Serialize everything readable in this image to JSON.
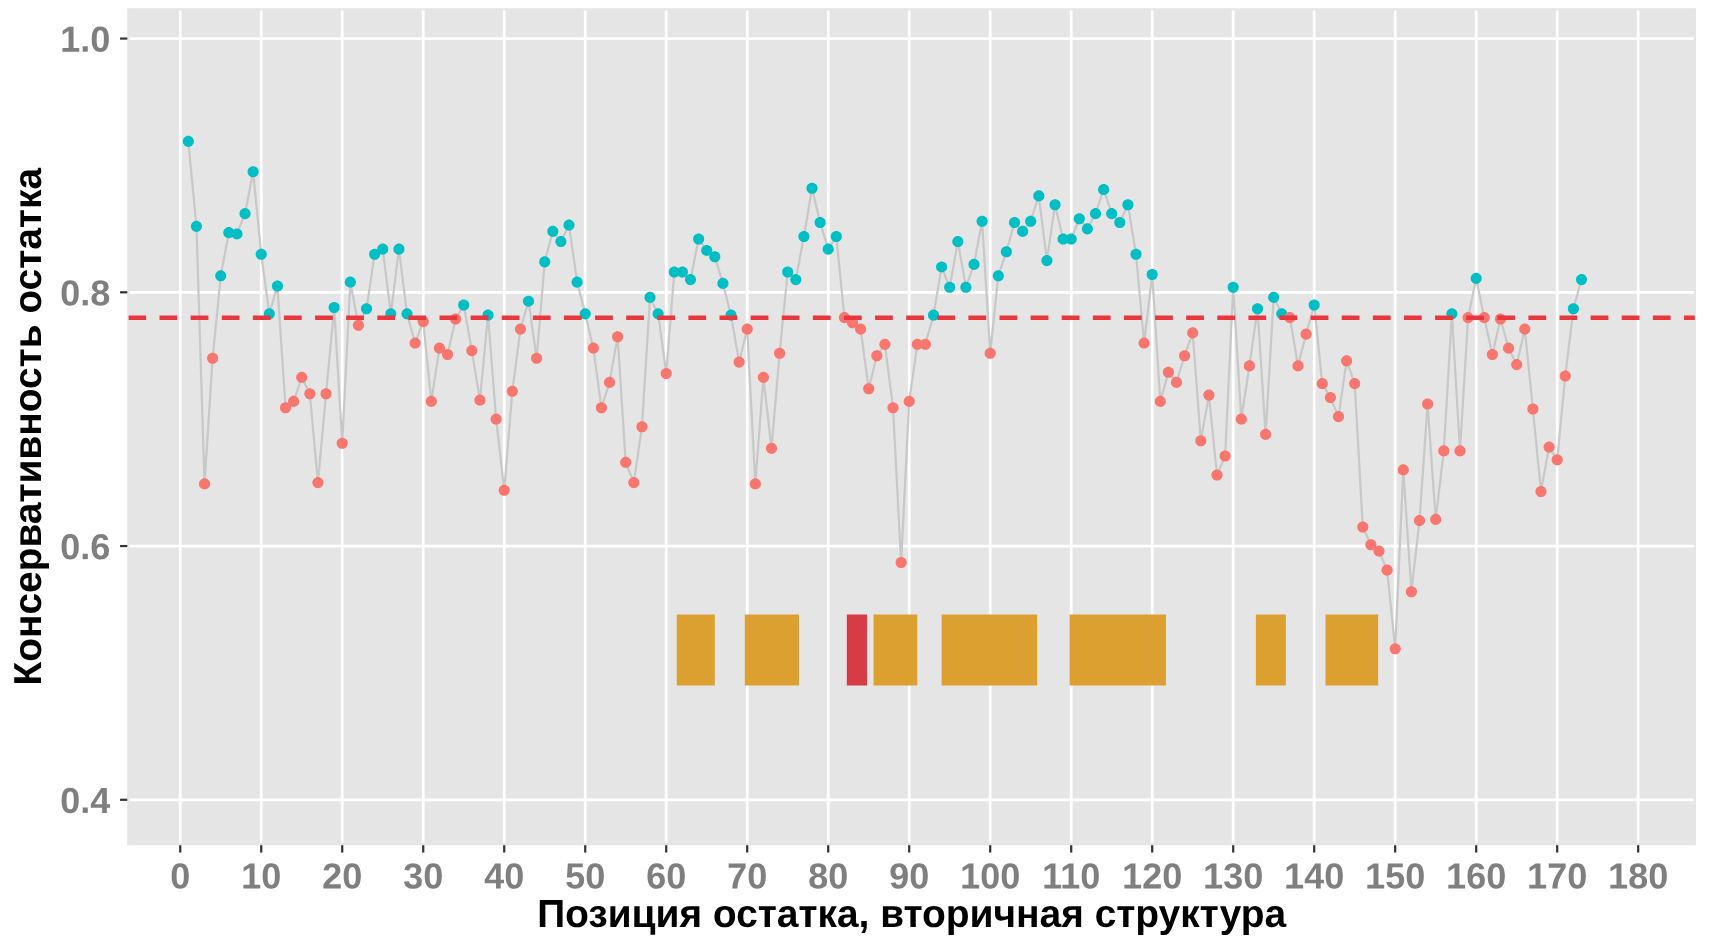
{
  "chart_data": {
    "type": "scatter",
    "xlabel": "Позиция остатка, вторичная структура",
    "ylabel": "Консервативность остатка",
    "x": [
      1,
      2,
      3,
      4,
      5,
      6,
      7,
      8,
      9,
      10,
      11,
      12,
      13,
      14,
      15,
      16,
      17,
      18,
      19,
      20,
      21,
      22,
      23,
      24,
      25,
      26,
      27,
      28,
      29,
      30,
      31,
      32,
      33,
      34,
      35,
      36,
      37,
      38,
      39,
      40,
      41,
      42,
      43,
      44,
      45,
      46,
      47,
      48,
      49,
      50,
      51,
      52,
      53,
      54,
      55,
      56,
      57,
      58,
      59,
      60,
      61,
      62,
      63,
      64,
      65,
      66,
      67,
      68,
      69,
      70,
      71,
      72,
      73,
      74,
      75,
      76,
      77,
      78,
      79,
      80,
      81,
      82,
      83,
      84,
      85,
      86,
      87,
      88,
      89,
      90,
      91,
      92,
      93,
      94,
      95,
      96,
      97,
      98,
      99,
      100,
      101,
      102,
      103,
      104,
      105,
      106,
      107,
      108,
      109,
      110,
      111,
      112,
      113,
      114,
      115,
      116,
      117,
      118,
      119,
      120,
      121,
      122,
      123,
      124,
      125,
      126,
      127,
      128,
      129,
      130,
      131,
      132,
      133,
      134,
      135,
      136,
      137,
      138,
      139,
      140,
      141,
      142,
      143,
      144,
      145,
      146,
      147,
      148,
      149,
      150,
      151,
      152,
      153,
      154,
      155,
      156,
      157,
      158,
      159,
      160,
      161,
      162,
      163,
      164,
      165,
      166,
      167,
      168,
      169,
      170,
      171,
      172,
      173
    ],
    "series": [
      {
        "type": "line",
        "color": "#c8c8c8",
        "marker": "none",
        "values": [
          0.919,
          0.852,
          0.649,
          0.748,
          0.813,
          0.847,
          0.846,
          0.862,
          0.895,
          0.83,
          0.783,
          0.805,
          0.709,
          0.714,
          0.733,
          0.72,
          0.65,
          0.72,
          0.788,
          0.681,
          0.808,
          0.774,
          0.787,
          0.83,
          0.834,
          0.783,
          0.834,
          0.783,
          0.76,
          0.777,
          0.714,
          0.756,
          0.751,
          0.779,
          0.79,
          0.754,
          0.715,
          0.782,
          0.7,
          0.644,
          0.722,
          0.771,
          0.793,
          0.748,
          0.824,
          0.848,
          0.84,
          0.853,
          0.808,
          0.783,
          0.756,
          0.709,
          0.729,
          0.765,
          0.666,
          0.65,
          0.694,
          0.796,
          0.783,
          0.736,
          0.816,
          0.816,
          0.81,
          0.842,
          0.833,
          0.828,
          0.807,
          0.782,
          0.745,
          0.771,
          0.649,
          0.733,
          0.677,
          0.752,
          0.816,
          0.81,
          0.844,
          0.882,
          0.855,
          0.834,
          0.844,
          0.78,
          0.776,
          0.771,
          0.724,
          0.75,
          0.759,
          0.709,
          0.587,
          0.714,
          0.759,
          0.759,
          0.782,
          0.82,
          0.804,
          0.84,
          0.804,
          0.822,
          0.856,
          0.752,
          0.813,
          0.832,
          0.855,
          0.848,
          0.856,
          0.876,
          0.825,
          0.869,
          0.842,
          0.842,
          0.858,
          0.85,
          0.862,
          0.881,
          0.862,
          0.855,
          0.869,
          0.83,
          0.76,
          0.814,
          0.714,
          0.737,
          0.729,
          0.75,
          0.768,
          0.683,
          0.719,
          0.656,
          0.671,
          0.804,
          0.7,
          0.742,
          0.787,
          0.688,
          0.796,
          0.783,
          0.78,
          0.742,
          0.767,
          0.79,
          0.728,
          0.717,
          0.702,
          0.746,
          0.728,
          0.615,
          0.601,
          0.596,
          0.581,
          0.519,
          0.66,
          0.564,
          0.62,
          0.712,
          0.621,
          0.675,
          0.783,
          0.675,
          0.78,
          0.811,
          0.78,
          0.751,
          0.779,
          0.756,
          0.743,
          0.771,
          0.708,
          0.643,
          0.678,
          0.668,
          0.734,
          0.787,
          0.81
        ]
      },
      {
        "marker": "circle",
        "values": [
          0.919,
          0.852,
          0.649,
          0.748,
          0.813,
          0.847,
          0.846,
          0.862,
          0.895,
          0.83,
          0.783,
          0.805,
          0.709,
          0.714,
          0.733,
          0.72,
          0.65,
          0.72,
          0.788,
          0.681,
          0.808,
          0.774,
          0.787,
          0.83,
          0.834,
          0.783,
          0.834,
          0.783,
          0.76,
          0.777,
          0.714,
          0.756,
          0.751,
          0.779,
          0.79,
          0.754,
          0.715,
          0.782,
          0.7,
          0.644,
          0.722,
          0.771,
          0.793,
          0.748,
          0.824,
          0.848,
          0.84,
          0.853,
          0.808,
          0.783,
          0.756,
          0.709,
          0.729,
          0.765,
          0.666,
          0.65,
          0.694,
          0.796,
          0.783,
          0.736,
          0.816,
          0.816,
          0.81,
          0.842,
          0.833,
          0.828,
          0.807,
          0.782,
          0.745,
          0.771,
          0.649,
          0.733,
          0.677,
          0.752,
          0.816,
          0.81,
          0.844,
          0.882,
          0.855,
          0.834,
          0.844,
          0.78,
          0.776,
          0.771,
          0.724,
          0.75,
          0.759,
          0.709,
          0.587,
          0.714,
          0.759,
          0.759,
          0.782,
          0.82,
          0.804,
          0.84,
          0.804,
          0.822,
          0.856,
          0.752,
          0.813,
          0.832,
          0.855,
          0.848,
          0.856,
          0.876,
          0.825,
          0.869,
          0.842,
          0.842,
          0.858,
          0.85,
          0.862,
          0.881,
          0.862,
          0.855,
          0.869,
          0.83,
          0.76,
          0.814,
          0.714,
          0.737,
          0.729,
          0.75,
          0.768,
          0.683,
          0.719,
          0.656,
          0.671,
          0.804,
          0.7,
          0.742,
          0.787,
          0.688,
          0.796,
          0.783,
          0.78,
          0.742,
          0.767,
          0.79,
          0.728,
          0.717,
          0.702,
          0.746,
          0.728,
          0.615,
          0.601,
          0.596,
          0.581,
          0.519,
          0.66,
          0.564,
          0.62,
          0.712,
          0.621,
          0.675,
          0.783,
          0.675,
          0.78,
          0.811,
          0.78,
          0.751,
          0.779,
          0.756,
          0.743,
          0.771,
          0.708,
          0.643,
          0.678,
          0.668,
          0.734,
          0.787,
          0.81
        ],
        "colors": [
          "#00bfc4",
          "#00bfc4",
          "#f8766d",
          "#f8766d",
          "#00bfc4",
          "#00bfc4",
          "#00bfc4",
          "#00bfc4",
          "#00bfc4",
          "#00bfc4",
          "#00bfc4",
          "#00bfc4",
          "#f8766d",
          "#f8766d",
          "#f8766d",
          "#f8766d",
          "#f8766d",
          "#f8766d",
          "#00bfc4",
          "#f8766d",
          "#00bfc4",
          "#f8766d",
          "#00bfc4",
          "#00bfc4",
          "#00bfc4",
          "#00bfc4",
          "#00bfc4",
          "#00bfc4",
          "#f8766d",
          "#f8766d",
          "#f8766d",
          "#f8766d",
          "#f8766d",
          "#f8766d",
          "#00bfc4",
          "#f8766d",
          "#f8766d",
          "#00bfc4",
          "#f8766d",
          "#f8766d",
          "#f8766d",
          "#f8766d",
          "#00bfc4",
          "#f8766d",
          "#00bfc4",
          "#00bfc4",
          "#00bfc4",
          "#00bfc4",
          "#00bfc4",
          "#00bfc4",
          "#f8766d",
          "#f8766d",
          "#f8766d",
          "#f8766d",
          "#f8766d",
          "#f8766d",
          "#f8766d",
          "#00bfc4",
          "#00bfc4",
          "#f8766d",
          "#00bfc4",
          "#00bfc4",
          "#00bfc4",
          "#00bfc4",
          "#00bfc4",
          "#00bfc4",
          "#00bfc4",
          "#00bfc4",
          "#f8766d",
          "#f8766d",
          "#f8766d",
          "#f8766d",
          "#f8766d",
          "#f8766d",
          "#00bfc4",
          "#00bfc4",
          "#00bfc4",
          "#00bfc4",
          "#00bfc4",
          "#00bfc4",
          "#00bfc4",
          "#f8766d",
          "#f8766d",
          "#f8766d",
          "#f8766d",
          "#f8766d",
          "#f8766d",
          "#f8766d",
          "#f8766d",
          "#f8766d",
          "#f8766d",
          "#f8766d",
          "#00bfc4",
          "#00bfc4",
          "#00bfc4",
          "#00bfc4",
          "#00bfc4",
          "#00bfc4",
          "#00bfc4",
          "#f8766d",
          "#00bfc4",
          "#00bfc4",
          "#00bfc4",
          "#00bfc4",
          "#00bfc4",
          "#00bfc4",
          "#00bfc4",
          "#00bfc4",
          "#00bfc4",
          "#00bfc4",
          "#00bfc4",
          "#00bfc4",
          "#00bfc4",
          "#00bfc4",
          "#00bfc4",
          "#00bfc4",
          "#00bfc4",
          "#00bfc4",
          "#f8766d",
          "#00bfc4",
          "#f8766d",
          "#f8766d",
          "#f8766d",
          "#f8766d",
          "#f8766d",
          "#f8766d",
          "#f8766d",
          "#f8766d",
          "#f8766d",
          "#00bfc4",
          "#f8766d",
          "#f8766d",
          "#00bfc4",
          "#f8766d",
          "#00bfc4",
          "#00bfc4",
          "#f8766d",
          "#f8766d",
          "#f8766d",
          "#00bfc4",
          "#f8766d",
          "#f8766d",
          "#f8766d",
          "#f8766d",
          "#f8766d",
          "#f8766d",
          "#f8766d",
          "#f8766d",
          "#f8766d",
          "#f8766d",
          "#f8766d",
          "#f8766d",
          "#f8766d",
          "#f8766d",
          "#f8766d",
          "#f8766d",
          "#00bfc4",
          "#f8766d",
          "#f8766d",
          "#00bfc4",
          "#f8766d",
          "#f8766d",
          "#f8766d",
          "#f8766d",
          "#f8766d",
          "#f8766d",
          "#f8766d",
          "#f8766d",
          "#f8766d",
          "#f8766d",
          "#f8766d",
          "#00bfc4",
          "#00bfc4"
        ]
      }
    ],
    "ref_lines": [
      {
        "axis": "y",
        "value": 0.78,
        "color": "#e8383d",
        "line_style": "dashed"
      }
    ],
    "bands": [
      {
        "axis": "x",
        "from": 61.3,
        "to": 66.0,
        "color": "#dca030"
      },
      {
        "axis": "x",
        "from": 69.7,
        "to": 76.4,
        "color": "#dca030"
      },
      {
        "axis": "x",
        "from": 82.3,
        "to": 84.8,
        "color": "#d63c45"
      },
      {
        "axis": "x",
        "from": 85.6,
        "to": 91.0,
        "color": "#dca030"
      },
      {
        "axis": "x",
        "from": 94.0,
        "to": 105.8,
        "color": "#dca030"
      },
      {
        "axis": "x",
        "from": 109.8,
        "to": 121.7,
        "color": "#dca030"
      },
      {
        "axis": "x",
        "from": 132.8,
        "to": 136.5,
        "color": "#dca030"
      },
      {
        "axis": "x",
        "from": 141.4,
        "to": 147.9,
        "color": "#dca030"
      }
    ],
    "xlim": [
      -6.4,
      187
    ],
    "xticks": [
      0,
      10,
      20,
      30,
      40,
      50,
      60,
      70,
      80,
      90,
      100,
      110,
      120,
      130,
      140,
      150,
      160,
      170,
      180
    ],
    "ylim": [
      0.365,
      1.023
    ],
    "yticks": [
      {
        "value": 0.4,
        "label": "0.4"
      },
      {
        "value": 0.6,
        "label": "0.6"
      },
      {
        "value": 0.8,
        "label": "0.8"
      },
      {
        "value": 1.0,
        "label": "1.0"
      }
    ],
    "grid": true
  }
}
